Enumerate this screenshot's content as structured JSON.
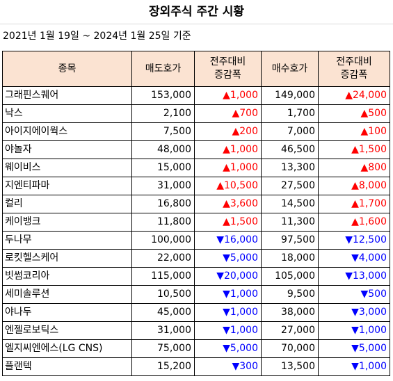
{
  "title": "장외주식 주간 시황",
  "subtitle": "2021년 1월 19일 ~ 2024년 1월 25일 기준",
  "headers": {
    "name": "종목",
    "ask": "매도호가",
    "ask_change_1": "전주대비",
    "ask_change_2": "증감폭",
    "bid": "매수호가",
    "bid_change_1": "전주대비",
    "bid_change_2": "증감폭"
  },
  "colors": {
    "up": "#ff0000",
    "down": "#0000ff",
    "header_bg": "#fbe3d2"
  },
  "rows": [
    {
      "name": "그래핀스퀘어",
      "ask": "153,000",
      "ask_dir": "up",
      "ask_change": "▲1,000",
      "bid": "149,000",
      "bid_dir": "up",
      "bid_change": "▲24,000"
    },
    {
      "name": "낙스",
      "ask": "2,100",
      "ask_dir": "up",
      "ask_change": "▲700",
      "bid": "1,700",
      "bid_dir": "up",
      "bid_change": "▲500"
    },
    {
      "name": "아이지에이웍스",
      "ask": "7,500",
      "ask_dir": "up",
      "ask_change": "▲200",
      "bid": "7,000",
      "bid_dir": "up",
      "bid_change": "▲100"
    },
    {
      "name": "야놀자",
      "ask": "48,000",
      "ask_dir": "up",
      "ask_change": "▲1,000",
      "bid": "46,500",
      "bid_dir": "up",
      "bid_change": "▲1,500"
    },
    {
      "name": "웨이비스",
      "ask": "15,000",
      "ask_dir": "up",
      "ask_change": "▲1,000",
      "bid": "13,300",
      "bid_dir": "up",
      "bid_change": "▲800"
    },
    {
      "name": "지엔티파마",
      "ask": "31,000",
      "ask_dir": "up",
      "ask_change": "▲10,500",
      "bid": "27,500",
      "bid_dir": "up",
      "bid_change": "▲8,000"
    },
    {
      "name": "컬리",
      "ask": "16,800",
      "ask_dir": "up",
      "ask_change": "▲3,600",
      "bid": "14,500",
      "bid_dir": "up",
      "bid_change": "▲1,700"
    },
    {
      "name": "케이뱅크",
      "ask": "11,800",
      "ask_dir": "up",
      "ask_change": "▲1,500",
      "bid": "11,300",
      "bid_dir": "up",
      "bid_change": "▲1,600"
    },
    {
      "name": "두나무",
      "ask": "100,000",
      "ask_dir": "down",
      "ask_change": "▼16,000",
      "bid": "97,500",
      "bid_dir": "down",
      "bid_change": "▼12,500"
    },
    {
      "name": "로킷헬스케어",
      "ask": "22,000",
      "ask_dir": "down",
      "ask_change": "▼5,000",
      "bid": "18,000",
      "bid_dir": "down",
      "bid_change": "▼4,000"
    },
    {
      "name": "빗썸코리아",
      "ask": "115,000",
      "ask_dir": "down",
      "ask_change": "▼20,000",
      "bid": "105,000",
      "bid_dir": "down",
      "bid_change": "▼13,000"
    },
    {
      "name": "세미솔루션",
      "ask": "10,500",
      "ask_dir": "down",
      "ask_change": "▼1,000",
      "bid": "9,500",
      "bid_dir": "down",
      "bid_change": "▼500"
    },
    {
      "name": "야나두",
      "ask": "45,000",
      "ask_dir": "down",
      "ask_change": "▼1,000",
      "bid": "38,000",
      "bid_dir": "down",
      "bid_change": "▼3,000"
    },
    {
      "name": "엔젤로보틱스",
      "ask": "31,000",
      "ask_dir": "down",
      "ask_change": "▼1,000",
      "bid": "27,000",
      "bid_dir": "down",
      "bid_change": "▼1,000"
    },
    {
      "name": "엘지씨엔에스(LG CNS)",
      "ask": "75,000",
      "ask_dir": "down",
      "ask_change": "▼5,000",
      "bid": "70,000",
      "bid_dir": "down",
      "bid_change": "▼5,000"
    },
    {
      "name": "플랜텍",
      "ask": "15,200",
      "ask_dir": "down",
      "ask_change": "▼300",
      "bid": "13,500",
      "bid_dir": "down",
      "bid_change": "▼1,000"
    }
  ]
}
